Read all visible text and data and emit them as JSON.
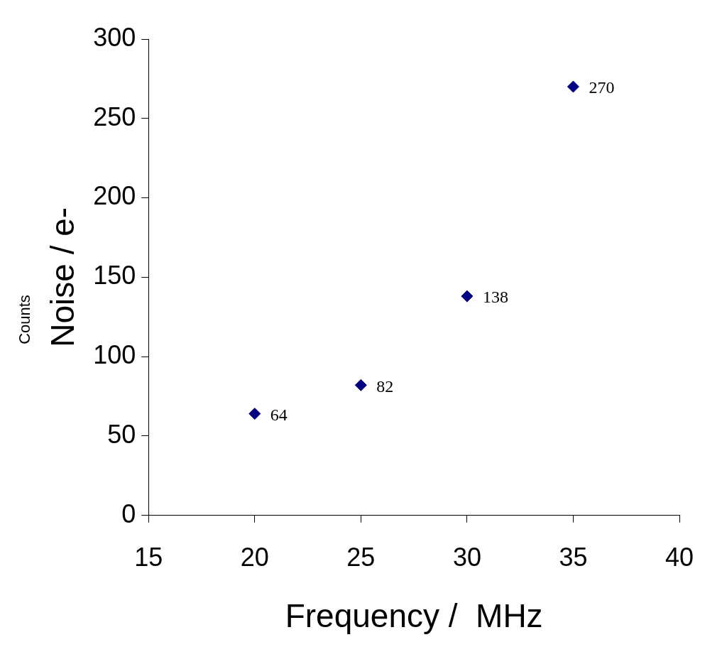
{
  "chart_data": {
    "type": "scatter",
    "xlabel": "Frequency /  MHz",
    "ylabel": "Noise / e-",
    "x": [
      20,
      25,
      30,
      35
    ],
    "series": [
      {
        "color": "#000080",
        "values": [
          64,
          82,
          138,
          270
        ]
      }
    ],
    "xlim": [
      15,
      40
    ],
    "xticks": [
      15,
      20,
      25,
      30,
      35,
      40
    ],
    "ylim": [
      0,
      300
    ],
    "yticks": [
      0,
      50,
      100,
      150,
      200,
      250,
      300
    ],
    "data_labels": true,
    "grid": false,
    "legend": false,
    "marker": "diamond",
    "annotations": [
      "Counts"
    ]
  }
}
